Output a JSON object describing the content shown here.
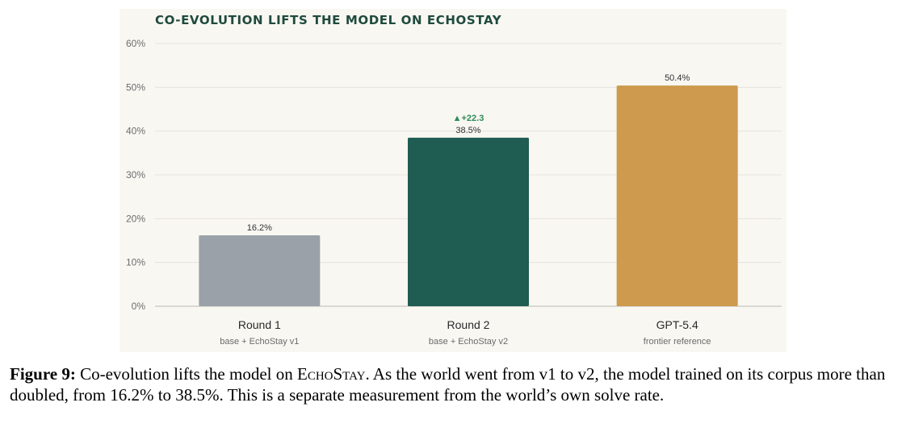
{
  "chart_data": {
    "type": "bar",
    "title": "CO-EVOLUTION LIFTS THE MODEL ON ECHOSTAY",
    "categories": [
      "Round 1",
      "Round 2",
      "GPT-5.4"
    ],
    "subcategories": [
      "base + EchoStay v1",
      "base + EchoStay v2",
      "frontier reference"
    ],
    "values": [
      16.2,
      38.5,
      50.4
    ],
    "value_labels": [
      "16.2%",
      "38.5%",
      "50.4%"
    ],
    "colors": [
      "#9aa1a9",
      "#1f5c52",
      "#cd9a4e"
    ],
    "yticks": [
      "0%",
      "10%",
      "20%",
      "30%",
      "40%",
      "50%",
      "60%"
    ],
    "ylim": [
      0,
      60
    ],
    "grid": true,
    "annotation": {
      "category_index": 1,
      "text": "▲+22.3",
      "color": "#2e8b57"
    }
  },
  "caption": {
    "label": "Figure 9:",
    "text_before": " Co-evolution lifts the model on ",
    "smallcaps": "EchoStay",
    "text_after": ". As the world went from v1 to v2, the model trained on its corpus more than doubled, from 16.2% to 38.5%. This is a separate measurement from the world’s own solve rate."
  }
}
